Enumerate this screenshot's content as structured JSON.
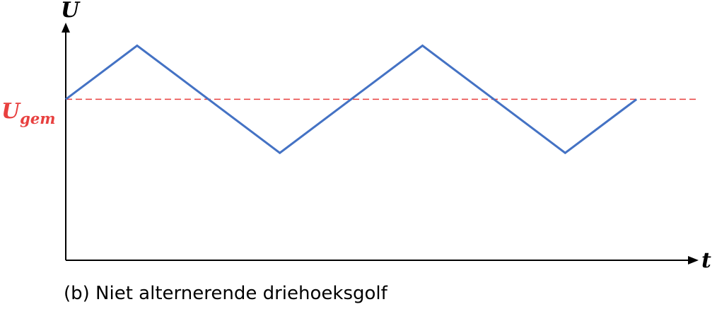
{
  "figure": {
    "caption": "(b) Niet alternerende driehoeksgolf"
  },
  "axes": {
    "y_label": "U",
    "x_label": "t"
  },
  "average_line": {
    "label_main": "U",
    "label_sub": "gem",
    "color": "#e8403f",
    "style": "dashed"
  },
  "chart_data": {
    "type": "line",
    "title": "",
    "xlabel": "t",
    "ylabel": "U",
    "series": [
      {
        "name": "driehoeksgolf",
        "color": "#4472c4",
        "x": [
          0,
          1,
          3,
          5,
          7,
          8
        ],
        "y": [
          0,
          1,
          -1,
          1,
          -1,
          0
        ]
      }
    ],
    "reference_lines": [
      {
        "name": "U_gem",
        "y": 0,
        "color": "#e8403f",
        "style": "dashed"
      }
    ],
    "xlim": [
      0,
      8.85
    ],
    "ylim": [
      -3,
      1.85
    ]
  }
}
